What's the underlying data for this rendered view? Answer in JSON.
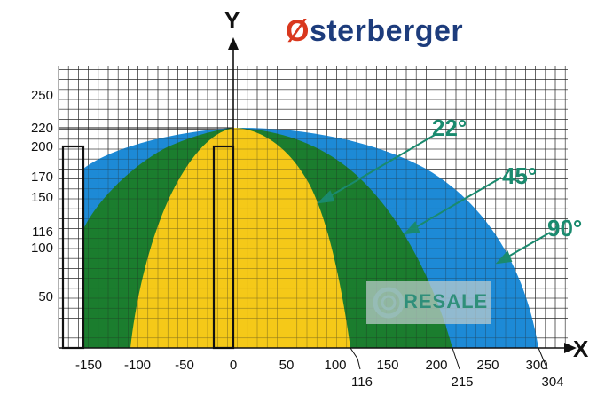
{
  "brand": {
    "first_letter": "Ø",
    "rest": "sterberger"
  },
  "watermark": {
    "text": "RESALE",
    "icon": "gear-icon"
  },
  "axes": {
    "x_name": "X",
    "y_name": "Y"
  },
  "y_ticks": [
    "250",
    "220",
    "200",
    "170",
    "150",
    "116",
    "100",
    "50"
  ],
  "x_ticks": [
    "-150",
    "-100",
    "-50",
    "0",
    "50",
    "100",
    "150",
    "200",
    "250",
    "300"
  ],
  "x_extra_ticks": [
    "116",
    "215",
    "304"
  ],
  "angles": {
    "a22": "22°",
    "a45": "45°",
    "a90": "90°"
  },
  "colors": {
    "yellow": "#f5c918",
    "green": "#1b7d2e",
    "blue": "#1d8ad6",
    "teal": "#1a8a6e"
  },
  "chart_data": {
    "type": "area",
    "xlabel": "X",
    "ylabel": "Y",
    "xlim": [
      -180,
      320
    ],
    "ylim": [
      0,
      280
    ],
    "series": [
      {
        "name": "90°",
        "x": [
          -160,
          0,
          150,
          304
        ],
        "y": [
          170,
          220,
          170,
          0
        ]
      },
      {
        "name": "45°",
        "x": [
          -160,
          -110,
          0,
          100,
          215
        ],
        "y": [
          116,
          170,
          220,
          170,
          0
        ]
      },
      {
        "name": "22°",
        "x": [
          -105,
          -50,
          0,
          50,
          116
        ],
        "y": [
          0,
          170,
          220,
          170,
          0
        ]
      }
    ],
    "rectangles": [
      {
        "x": [
          -160,
          -135
        ],
        "y": [
          0,
          200
        ]
      },
      {
        "x": [
          -20,
          0
        ],
        "y": [
          0,
          200
        ]
      }
    ]
  }
}
